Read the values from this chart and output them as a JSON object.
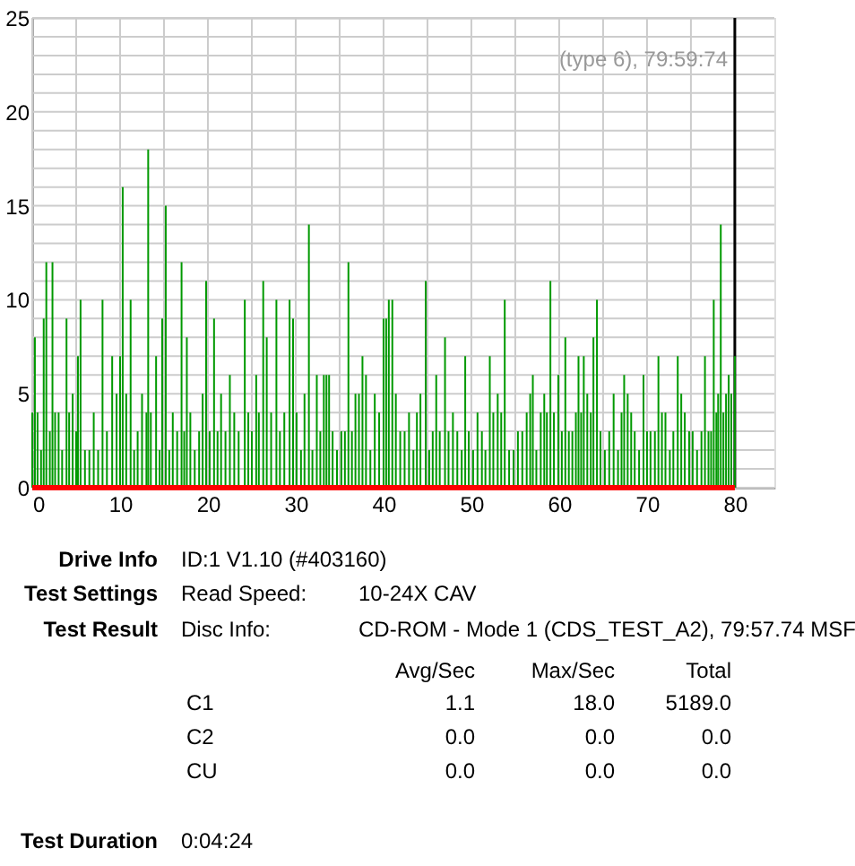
{
  "chart_data": {
    "type": "bar",
    "xlim": [
      0,
      84.5
    ],
    "ylim": [
      0,
      25
    ],
    "xticks": [
      0,
      {
        "value": 5,
        "label": null
      },
      10,
      {
        "value": 15,
        "label": null
      },
      20,
      {
        "value": 25,
        "label": null
      },
      30,
      {
        "value": 35,
        "label": null
      },
      40,
      {
        "value": 45,
        "label": null
      },
      50,
      {
        "value": 55,
        "label": null
      },
      60,
      {
        "value": 65,
        "label": null
      },
      70,
      {
        "value": 75,
        "label": null
      },
      80
    ],
    "yticks": [
      0,
      {
        "value": 1,
        "label": null
      },
      {
        "value": 2,
        "label": null
      },
      {
        "value": 3,
        "label": null
      },
      {
        "value": 4,
        "label": null
      },
      5,
      {
        "value": 6,
        "label": null
      },
      {
        "value": 7,
        "label": null
      },
      {
        "value": 8,
        "label": null
      },
      {
        "value": 9,
        "label": null
      },
      10,
      {
        "value": 11,
        "label": null
      },
      {
        "value": 12,
        "label": null
      },
      {
        "value": 13,
        "label": null
      },
      {
        "value": 14,
        "label": null
      },
      15,
      {
        "value": 16,
        "label": null
      },
      {
        "value": 17,
        "label": null
      },
      {
        "value": 18,
        "label": null
      },
      {
        "value": 19,
        "label": null
      },
      20,
      {
        "value": 21,
        "label": null
      },
      {
        "value": 22,
        "label": null
      },
      {
        "value": 23,
        "label": null
      },
      {
        "value": 24,
        "label": null
      },
      25
    ],
    "grid": true,
    "series": [
      {
        "color": "#009900",
        "x": [
          0.0,
          0.3,
          0.6,
          1.0,
          1.3,
          1.6,
          2.0,
          2.3,
          2.6,
          3.0,
          3.4,
          3.9,
          4.2,
          4.6,
          5.0,
          5.2,
          5.5,
          6.0,
          6.5,
          7.0,
          7.5,
          8.0,
          8.5,
          9.1,
          9.6,
          10.0,
          10.3,
          10.7,
          11.2,
          11.6,
          12.0,
          12.5,
          13.0,
          13.2,
          13.5,
          14.1,
          14.5,
          14.8,
          15.2,
          15.6,
          16.0,
          16.5,
          17.0,
          17.3,
          17.6,
          18.0,
          18.5,
          19.0,
          19.4,
          19.8,
          20.2,
          20.7,
          21.1,
          21.5,
          22.0,
          22.5,
          23.0,
          23.5,
          24.2,
          24.6,
          25.0,
          25.5,
          25.8,
          26.3,
          26.7,
          27.2,
          27.8,
          28.2,
          28.7,
          29.3,
          29.7,
          30.1,
          30.6,
          31.0,
          31.5,
          31.9,
          32.4,
          32.8,
          33.2,
          33.5,
          33.8,
          34.2,
          34.7,
          35.2,
          35.6,
          36.0,
          36.4,
          36.8,
          37.2,
          37.6,
          38.0,
          38.5,
          39.0,
          39.5,
          40.0,
          40.3,
          40.6,
          41.0,
          41.4,
          41.9,
          42.4,
          42.9,
          43.4,
          43.8,
          44.2,
          44.8,
          45.2,
          45.6,
          46.0,
          46.4,
          47.0,
          47.4,
          47.9,
          48.4,
          48.9,
          49.3,
          49.7,
          50.2,
          50.7,
          51.2,
          51.6,
          52.1,
          52.5,
          53.0,
          53.4,
          53.8,
          54.3,
          54.8,
          55.3,
          55.8,
          56.3,
          56.7,
          57.0,
          57.4,
          57.9,
          58.3,
          58.6,
          59.0,
          59.4,
          59.9,
          60.3,
          60.7,
          61.1,
          61.5,
          61.9,
          62.2,
          62.5,
          62.8,
          63.2,
          63.6,
          63.9,
          64.3,
          64.7,
          65.2,
          65.7,
          66.2,
          66.7,
          67.1,
          67.4,
          67.8,
          68.2,
          68.6,
          69.1,
          69.6,
          70.0,
          70.4,
          70.9,
          71.3,
          71.7,
          72.1,
          72.6,
          73.0,
          73.5,
          73.9,
          74.3,
          74.8,
          75.2,
          75.7,
          76.2,
          76.6,
          77.0,
          77.3,
          77.6,
          77.9,
          78.1,
          78.4,
          78.7,
          79.0,
          79.3,
          79.6,
          80.0
        ],
        "values": [
          4,
          8,
          4,
          2,
          9,
          12,
          3,
          12,
          4,
          4,
          2,
          9,
          4,
          5,
          3,
          7,
          10,
          2,
          2,
          4,
          2,
          10,
          3,
          7,
          5,
          7,
          16,
          5,
          10,
          2,
          3,
          5,
          4,
          18,
          4,
          7,
          2,
          9,
          15,
          2,
          4,
          3,
          12,
          3,
          8,
          4,
          2,
          3,
          5,
          11,
          3,
          9,
          3,
          5,
          3,
          6,
          4,
          3,
          10,
          4,
          3,
          6,
          4,
          11,
          8,
          4,
          10,
          3,
          4,
          10,
          9,
          4,
          2,
          5,
          14,
          2,
          6,
          3,
          6,
          6,
          6,
          3,
          2,
          3,
          3,
          12,
          3,
          5,
          5,
          7,
          6,
          2,
          5,
          4,
          9,
          9,
          10,
          10,
          5,
          3,
          3,
          4,
          2,
          4,
          5,
          11,
          2,
          3,
          6,
          3,
          8,
          3,
          4,
          3,
          2,
          7,
          3,
          2,
          4,
          3,
          2,
          7,
          4,
          5,
          4,
          10,
          2,
          2,
          3,
          3,
          4,
          5,
          6,
          2,
          4,
          5,
          4,
          11,
          4,
          6,
          3,
          8,
          3,
          3,
          4,
          7,
          4,
          7,
          5,
          4,
          8,
          10,
          3,
          2,
          3,
          5,
          2,
          4,
          6,
          5,
          4,
          3,
          2,
          6,
          3,
          3,
          3,
          7,
          4,
          4,
          2,
          3,
          7,
          5,
          4,
          3,
          3,
          2,
          3,
          7,
          3,
          3,
          10,
          4,
          5,
          14,
          4,
          5,
          6,
          5,
          7
        ]
      },
      {
        "type": "line",
        "color": "#ff0000",
        "x": [
          0,
          80
        ],
        "values": [
          0,
          0
        ]
      }
    ],
    "ref_lines": [
      {
        "axis": "x",
        "value": 80,
        "color": "#000000"
      }
    ],
    "annotations": [
      "Drive Info",
      "ID:1 V1.10 (#403160)",
      "Test Settings",
      "Read Speed:",
      "10-24X CAV",
      "Test Result",
      "Disc Info:",
      "CD-ROM - Mode 1 (CDS_TEST_A2), 79:57.74 MSF",
      "Avg/Sec",
      "Max/Sec",
      "Total",
      "C1",
      "1.1",
      "18.0",
      "5189.0",
      "C2",
      "0.0",
      "0.0",
      "0.0",
      "CU",
      "0.0",
      "0.0",
      "0.0",
      "Test Duration",
      "0:04:24",
      "(type 6), 79:59:74"
    ]
  }
}
